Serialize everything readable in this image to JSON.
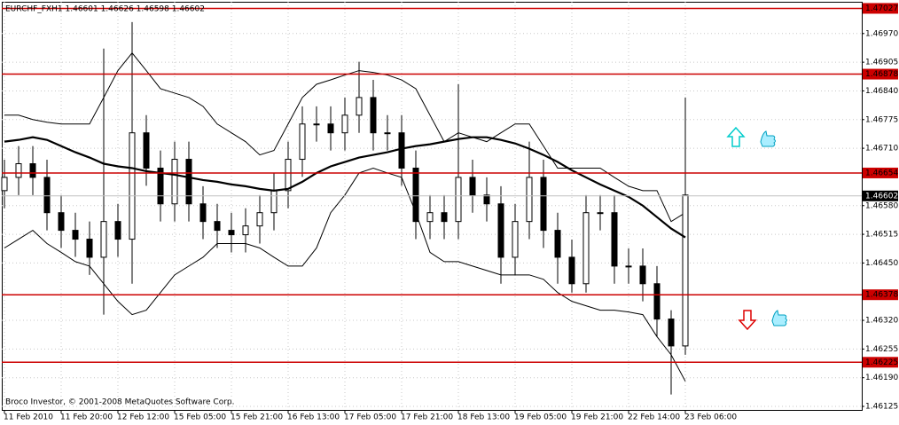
{
  "chart_data": {
    "type": "candlestick",
    "title": "EURCHF_FXH1  1.46601 1.46626 1.46598 1.46602",
    "copyright": "Broco Investor, © 2001-2008 MetaQuotes Software Corp.",
    "categories": [
      "11 Feb 2010",
      null,
      null,
      null,
      "11 Feb 20:00",
      null,
      null,
      null,
      "12 Feb 12:00",
      null,
      null,
      null,
      "15 Feb 05:00",
      null,
      null,
      null,
      "15 Feb 21:00",
      null,
      null,
      null,
      "16 Feb 13:00",
      null,
      null,
      null,
      "17 Feb 05:00",
      null,
      null,
      null,
      "17 Feb 21:00",
      null,
      null,
      null,
      "18 Feb 13:00",
      null,
      null,
      null,
      "19 Feb 05:00",
      null,
      null,
      null,
      "19 Feb 21:00",
      null,
      null,
      null,
      "22 Feb 14:00",
      null,
      null,
      null,
      "23 Feb 06:00"
    ],
    "ohlc": {
      "open": [
        1.46614,
        1.46644,
        1.46675,
        1.46644,
        1.46564,
        1.46524,
        1.46504,
        1.46463,
        1.46544,
        1.46504,
        1.46745,
        1.46665,
        1.46584,
        1.46685,
        1.46584,
        1.46544,
        1.46524,
        1.46514,
        1.46534,
        1.46564,
        1.46614,
        1.46685,
        1.46765,
        1.46765,
        1.46745,
        1.46785,
        1.46825,
        1.46745,
        1.46745,
        1.46665,
        1.46544,
        1.46564,
        1.46544,
        1.46644,
        1.46604,
        1.46584,
        1.46463,
        1.46544,
        1.46644,
        1.46524,
        1.46463,
        1.46403,
        1.46564,
        1.46564,
        1.46443,
        1.46443,
        1.46403,
        1.46323,
        1.46262
      ],
      "high": [
        1.46684,
        1.46715,
        1.46715,
        1.46684,
        1.46604,
        1.46564,
        1.46544,
        1.46936,
        1.46584,
        1.46996,
        1.46785,
        1.46705,
        1.46725,
        1.46725,
        1.46624,
        1.46584,
        1.46564,
        1.46574,
        1.46604,
        1.46654,
        1.46725,
        1.46805,
        1.46805,
        1.46805,
        1.46825,
        1.46906,
        1.46865,
        1.46785,
        1.46785,
        1.46705,
        1.46604,
        1.46604,
        1.46855,
        1.46684,
        1.46644,
        1.46624,
        1.46584,
        1.46725,
        1.46684,
        1.46564,
        1.46503,
        1.46604,
        1.46604,
        1.46604,
        1.46483,
        1.46483,
        1.46443,
        1.46343,
        1.46825
      ],
      "low": [
        1.46574,
        1.46604,
        1.46604,
        1.46524,
        1.46484,
        1.46464,
        1.46423,
        1.46333,
        1.46464,
        1.46403,
        1.46625,
        1.46544,
        1.46544,
        1.46544,
        1.46504,
        1.46484,
        1.46474,
        1.46474,
        1.46494,
        1.46524,
        1.46574,
        1.46645,
        1.46725,
        1.46705,
        1.46705,
        1.46745,
        1.46705,
        1.46705,
        1.46625,
        1.46504,
        1.46504,
        1.46504,
        1.46504,
        1.46564,
        1.46544,
        1.46403,
        1.46423,
        1.46504,
        1.46484,
        1.46403,
        1.46383,
        1.46383,
        1.46524,
        1.46403,
        1.46403,
        1.46363,
        1.46283,
        1.46152,
        1.46242
      ],
      "close": [
        1.46644,
        1.46675,
        1.46644,
        1.46564,
        1.46524,
        1.46504,
        1.46463,
        1.46544,
        1.46504,
        1.46745,
        1.46665,
        1.46584,
        1.46685,
        1.46584,
        1.46544,
        1.46524,
        1.46514,
        1.46534,
        1.46564,
        1.46614,
        1.46685,
        1.46765,
        1.46765,
        1.46745,
        1.46785,
        1.46825,
        1.46745,
        1.46745,
        1.46665,
        1.46544,
        1.46564,
        1.46544,
        1.46644,
        1.46604,
        1.46584,
        1.46463,
        1.46544,
        1.46644,
        1.46524,
        1.46463,
        1.46403,
        1.46564,
        1.46564,
        1.46443,
        1.46443,
        1.46403,
        1.46323,
        1.46262,
        1.46604
      ]
    },
    "ma": {
      "color": "#000000",
      "values": [
        1.46725,
        1.46729,
        1.46735,
        1.46729,
        1.46715,
        1.46701,
        1.46689,
        1.46675,
        1.46669,
        1.46665,
        1.46658,
        1.46654,
        1.4665,
        1.46644,
        1.46638,
        1.46634,
        1.46628,
        1.46624,
        1.46618,
        1.46614,
        1.46618,
        1.46634,
        1.46654,
        1.46669,
        1.46679,
        1.46689,
        1.46695,
        1.46701,
        1.46709,
        1.46715,
        1.46719,
        1.46725,
        1.46731,
        1.46735,
        1.46735,
        1.46729,
        1.46721,
        1.46709,
        1.46695,
        1.46679,
        1.4666,
        1.46644,
        1.46628,
        1.46614,
        1.466,
        1.4658,
        1.46554,
        1.46528,
        1.46508
      ]
    },
    "bands": {
      "color": "#000000",
      "upper": [
        1.46785,
        1.46785,
        1.46775,
        1.46769,
        1.46765,
        1.46765,
        1.46765,
        1.46825,
        1.46886,
        1.46926,
        1.46886,
        1.46845,
        1.46835,
        1.46825,
        1.46805,
        1.46765,
        1.46745,
        1.46725,
        1.46695,
        1.46705,
        1.46765,
        1.46825,
        1.46855,
        1.46865,
        1.46876,
        1.46886,
        1.46882,
        1.46876,
        1.46865,
        1.46845,
        1.46785,
        1.46725,
        1.46745,
        1.46735,
        1.46725,
        1.46745,
        1.46765,
        1.46765,
        1.46715,
        1.46665,
        1.46665,
        1.46665,
        1.46665,
        1.46644,
        1.46624,
        1.46614,
        1.46614,
        1.46544,
        1.46564
      ],
      "lower": [
        1.46484,
        1.46504,
        1.46524,
        1.46494,
        1.46474,
        1.46453,
        1.46443,
        1.46403,
        1.46363,
        1.46333,
        1.46343,
        1.46383,
        1.46423,
        1.46443,
        1.46463,
        1.46494,
        1.46494,
        1.46494,
        1.46484,
        1.46463,
        1.46443,
        1.46443,
        1.46484,
        1.46564,
        1.46604,
        1.46654,
        1.46665,
        1.46654,
        1.46644,
        1.46564,
        1.46474,
        1.46453,
        1.46453,
        1.46443,
        1.46433,
        1.46423,
        1.46423,
        1.46423,
        1.46413,
        1.46383,
        1.46363,
        1.46353,
        1.46343,
        1.46343,
        1.46339,
        1.46333,
        1.46283,
        1.46242,
        1.46182
      ]
    },
    "levels": {
      "color": "#cc0000",
      "values": [
        1.47027,
        1.46878,
        1.46654,
        1.46378,
        1.46225
      ]
    },
    "last_price": 1.46602,
    "ylim": [
      1.46117,
      1.47042
    ],
    "yticks": [
      {
        "value": 1.4697,
        "label": "1.46970"
      },
      1.46905,
      {
        "value": 1.4684,
        "label": "1.46840"
      },
      1.46775,
      {
        "value": 1.4671,
        "label": "1.46710"
      },
      {
        "value": 1.4658,
        "label": "1.46580"
      },
      1.46515,
      {
        "value": 1.4645,
        "label": "1.46450"
      },
      {
        "value": 1.4632,
        "label": "1.46320"
      },
      1.46255,
      {
        "value": 1.4619,
        "label": "1.46190"
      },
      1.46125
    ],
    "grid": true
  }
}
